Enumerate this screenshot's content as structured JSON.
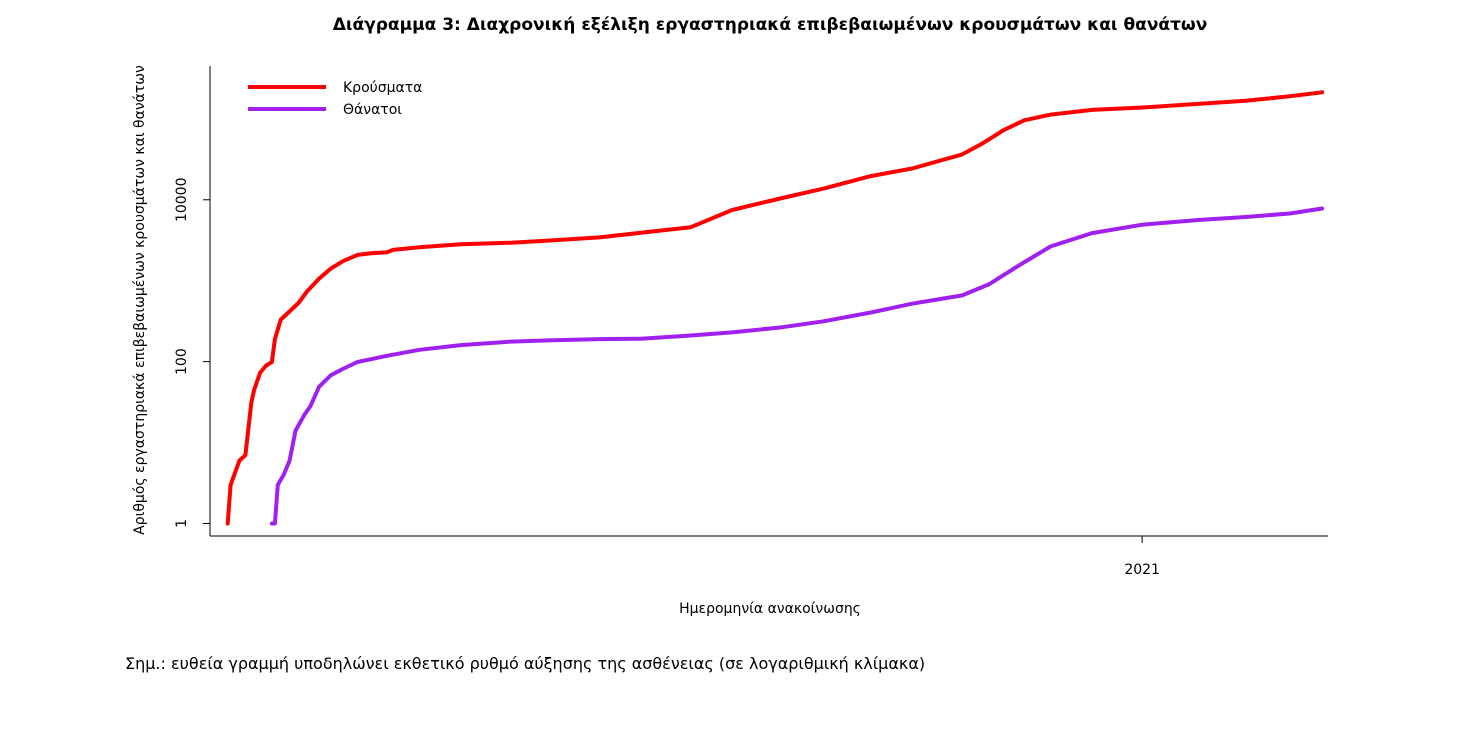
{
  "chart_data": {
    "type": "line",
    "title": "Διάγραμμα 3: Διαχρονική εξέλιξη εργαστηριακά επιβεβαιωμένων κρουσμάτων και θανάτων",
    "xlabel": "Ημερομηνία ανακοίνωσης",
    "ylabel": "Αριθμός εργαστηριακά επιβεβαιωμένων κρουσμάτων και θανάτων",
    "y_scale": "log",
    "ylim": [
      0.7,
      450000
    ],
    "xlim": [
      "2020-02-20",
      "2021-03-05"
    ],
    "y_ticks": [
      1,
      100,
      10000
    ],
    "y_tick_labels": [
      "1",
      "100",
      "10000"
    ],
    "x_ticks": [
      "2021-01-01"
    ],
    "x_tick_labels": [
      "2021"
    ],
    "grid": false,
    "legend_position": "top-left",
    "series": [
      {
        "name": "Κρούσματα",
        "color": "#ff0000",
        "points": [
          [
            "2020-02-26",
            1
          ],
          [
            "2020-02-27",
            3
          ],
          [
            "2020-03-01",
            6
          ],
          [
            "2020-03-03",
            7
          ],
          [
            "2020-03-05",
            31
          ],
          [
            "2020-03-06",
            45
          ],
          [
            "2020-03-08",
            73
          ],
          [
            "2020-03-10",
            89
          ],
          [
            "2020-03-12",
            99
          ],
          [
            "2020-03-13",
            190
          ],
          [
            "2020-03-15",
            331
          ],
          [
            "2020-03-18",
            418
          ],
          [
            "2020-03-21",
            530
          ],
          [
            "2020-03-24",
            743
          ],
          [
            "2020-03-28",
            1061
          ],
          [
            "2020-04-01",
            1415
          ],
          [
            "2020-04-05",
            1735
          ],
          [
            "2020-04-10",
            2081
          ],
          [
            "2020-04-15",
            2192
          ],
          [
            "2020-04-20",
            2245
          ],
          [
            "2020-04-22",
            2401
          ],
          [
            "2020-05-01",
            2591
          ],
          [
            "2020-05-15",
            2819
          ],
          [
            "2020-06-01",
            2952
          ],
          [
            "2020-06-15",
            3148
          ],
          [
            "2020-07-01",
            3432
          ],
          [
            "2020-07-15",
            3910
          ],
          [
            "2020-08-01",
            4587
          ],
          [
            "2020-08-15",
            7472
          ],
          [
            "2020-09-01",
            10524
          ],
          [
            "2020-09-15",
            13730
          ],
          [
            "2020-10-01",
            19613
          ],
          [
            "2020-10-15",
            24341
          ],
          [
            "2020-11-01",
            36406
          ],
          [
            "2020-11-08",
            50000
          ],
          [
            "2020-11-15",
            72510
          ],
          [
            "2020-11-22",
            96000
          ],
          [
            "2020-12-01",
            113000
          ],
          [
            "2020-12-15",
            129000
          ],
          [
            "2021-01-01",
            138000
          ],
          [
            "2021-01-20",
            153000
          ],
          [
            "2021-02-05",
            167000
          ],
          [
            "2021-02-20",
            190000
          ],
          [
            "2021-03-03",
            213000
          ]
        ]
      },
      {
        "name": "Θάνατοι",
        "color": "#a020f0",
        "points": [
          [
            "2020-03-12",
            1
          ],
          [
            "2020-03-13",
            1
          ],
          [
            "2020-03-14",
            3
          ],
          [
            "2020-03-16",
            4
          ],
          [
            "2020-03-18",
            6
          ],
          [
            "2020-03-20",
            14
          ],
          [
            "2020-03-23",
            22
          ],
          [
            "2020-03-25",
            28
          ],
          [
            "2020-03-28",
            49
          ],
          [
            "2020-04-01",
            68
          ],
          [
            "2020-04-05",
            81
          ],
          [
            "2020-04-10",
            99
          ],
          [
            "2020-04-15",
            108
          ],
          [
            "2020-04-20",
            118
          ],
          [
            "2020-05-01",
            140
          ],
          [
            "2020-05-15",
            160
          ],
          [
            "2020-06-01",
            177
          ],
          [
            "2020-06-15",
            184
          ],
          [
            "2020-07-01",
            190
          ],
          [
            "2020-07-15",
            192
          ],
          [
            "2020-08-01",
            210
          ],
          [
            "2020-08-15",
            230
          ],
          [
            "2020-09-01",
            266
          ],
          [
            "2020-09-15",
            315
          ],
          [
            "2020-10-01",
            405
          ],
          [
            "2020-10-15",
            520
          ],
          [
            "2020-11-01",
            658
          ],
          [
            "2020-11-10",
            900
          ],
          [
            "2020-11-20",
            1527
          ],
          [
            "2020-12-01",
            2651
          ],
          [
            "2020-12-15",
            3870
          ],
          [
            "2021-01-01",
            4921
          ],
          [
            "2021-01-20",
            5622
          ],
          [
            "2021-02-05",
            6128
          ],
          [
            "2021-02-20",
            6762
          ],
          [
            "2021-03-03",
            7800
          ]
        ]
      }
    ],
    "annotation": "Σημ.: ευθεία γραμμή υποδηλώνει εκθετικό ρυθμό αύξησης της ασθένειας (σε λογαριθμική κλίμακα)"
  }
}
